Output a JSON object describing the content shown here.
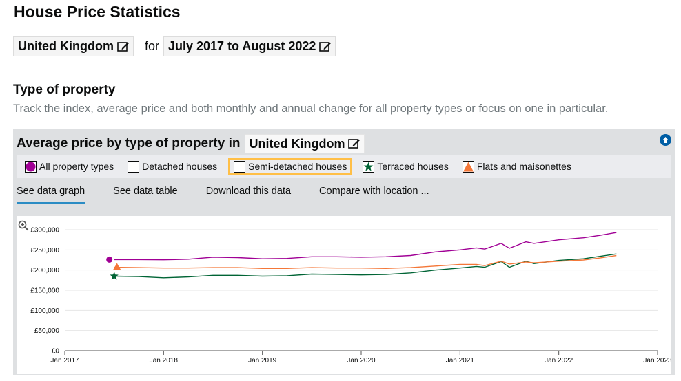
{
  "page": {
    "title": "House Price Statistics",
    "location": "United Kingdom",
    "for_word": "for",
    "period": "July 2017 to August 2022"
  },
  "section": {
    "title": "Type of property",
    "description": "Track the index, average price and both monthly and annual change for all property types or focus on one in particular."
  },
  "panel": {
    "heading": "Average price by type of property in",
    "location": "United Kingdom",
    "legend": [
      {
        "label": "All property types",
        "color": "#a00095",
        "icon": "filled-square",
        "checked": true
      },
      {
        "label": "Detached houses",
        "color": "#ffffff",
        "icon": "empty-box",
        "checked": false
      },
      {
        "label": "Semi-detached houses",
        "color": "#ffffff",
        "icon": "empty-box",
        "checked": false,
        "focused": true
      },
      {
        "label": "Terraced houses",
        "color": "#006435",
        "icon": "star",
        "checked": true
      },
      {
        "label": "Flats and maisonettes",
        "color": "#f47738",
        "icon": "triangle",
        "checked": true
      }
    ],
    "tabs": [
      {
        "label": "See data graph",
        "active": true
      },
      {
        "label": "See data table",
        "active": false
      },
      {
        "label": "Download this data",
        "active": false
      },
      {
        "label": "Compare with location ...",
        "active": false
      }
    ]
  },
  "colors": {
    "accent": "#2b8cc4",
    "all": "#a00095",
    "terraced": "#006435",
    "flats": "#f47738",
    "focus": "#ffbf47"
  },
  "chart_data": {
    "type": "line",
    "xlabel": "",
    "ylabel": "",
    "y_ticks": [
      "£0",
      "£50,000",
      "£100,000",
      "£150,000",
      "£200,000",
      "£250,000",
      "£300,000"
    ],
    "x_ticks": [
      "Jan 2017",
      "Jan 2018",
      "Jan 2019",
      "Jan 2020",
      "Jan 2021",
      "Jan 2022",
      "Jan 2023"
    ],
    "ylim": [
      0,
      300000
    ],
    "xlim": [
      "2017-01",
      "2023-01"
    ],
    "grid": "horizontal",
    "series": [
      {
        "name": "All property types",
        "color": "#a00095",
        "marker": "circle",
        "points": [
          [
            "2017-07",
            226000
          ],
          [
            "2017-10",
            226000
          ],
          [
            "2018-01",
            225500
          ],
          [
            "2018-04",
            227000
          ],
          [
            "2018-07",
            232000
          ],
          [
            "2018-10",
            231000
          ],
          [
            "2019-01",
            228000
          ],
          [
            "2019-04",
            229000
          ],
          [
            "2019-07",
            233000
          ],
          [
            "2019-10",
            233000
          ],
          [
            "2020-01",
            232000
          ],
          [
            "2020-04",
            233000
          ],
          [
            "2020-07",
            236000
          ],
          [
            "2020-10",
            245000
          ],
          [
            "2021-01",
            250000
          ],
          [
            "2021-03",
            255000
          ],
          [
            "2021-04",
            252000
          ],
          [
            "2021-06",
            266000
          ],
          [
            "2021-07",
            254000
          ],
          [
            "2021-09",
            270000
          ],
          [
            "2021-10",
            266000
          ],
          [
            "2022-01",
            275000
          ],
          [
            "2022-04",
            280000
          ],
          [
            "2022-06",
            286000
          ],
          [
            "2022-08",
            293000
          ]
        ]
      },
      {
        "name": "Terraced houses",
        "color": "#006435",
        "marker": "star",
        "points": [
          [
            "2017-07",
            185000
          ],
          [
            "2017-10",
            184000
          ],
          [
            "2018-01",
            181000
          ],
          [
            "2018-04",
            183000
          ],
          [
            "2018-07",
            187000
          ],
          [
            "2018-10",
            187000
          ],
          [
            "2019-01",
            185000
          ],
          [
            "2019-04",
            186000
          ],
          [
            "2019-07",
            190000
          ],
          [
            "2019-10",
            189000
          ],
          [
            "2020-01",
            188000
          ],
          [
            "2020-04",
            189000
          ],
          [
            "2020-07",
            193000
          ],
          [
            "2020-10",
            200000
          ],
          [
            "2021-01",
            205000
          ],
          [
            "2021-03",
            209000
          ],
          [
            "2021-04",
            207000
          ],
          [
            "2021-06",
            221000
          ],
          [
            "2021-07",
            207000
          ],
          [
            "2021-09",
            222000
          ],
          [
            "2021-10",
            216000
          ],
          [
            "2022-01",
            224000
          ],
          [
            "2022-04",
            228000
          ],
          [
            "2022-06",
            234000
          ],
          [
            "2022-08",
            240000
          ]
        ]
      },
      {
        "name": "Flats and maisonettes",
        "color": "#f47738",
        "marker": "triangle",
        "points": [
          [
            "2017-07",
            207000
          ],
          [
            "2017-10",
            206000
          ],
          [
            "2018-01",
            205000
          ],
          [
            "2018-04",
            205000
          ],
          [
            "2018-07",
            206000
          ],
          [
            "2018-10",
            206000
          ],
          [
            "2019-01",
            204000
          ],
          [
            "2019-04",
            204000
          ],
          [
            "2019-07",
            206000
          ],
          [
            "2019-10",
            205000
          ],
          [
            "2020-01",
            205000
          ],
          [
            "2020-04",
            204000
          ],
          [
            "2020-07",
            206000
          ],
          [
            "2020-10",
            210000
          ],
          [
            "2021-01",
            214000
          ],
          [
            "2021-03",
            214000
          ],
          [
            "2021-04",
            211000
          ],
          [
            "2021-06",
            222000
          ],
          [
            "2021-07",
            215000
          ],
          [
            "2021-09",
            220000
          ],
          [
            "2021-10",
            218000
          ],
          [
            "2022-01",
            222000
          ],
          [
            "2022-04",
            225000
          ],
          [
            "2022-06",
            230000
          ],
          [
            "2022-08",
            236000
          ]
        ]
      }
    ]
  }
}
